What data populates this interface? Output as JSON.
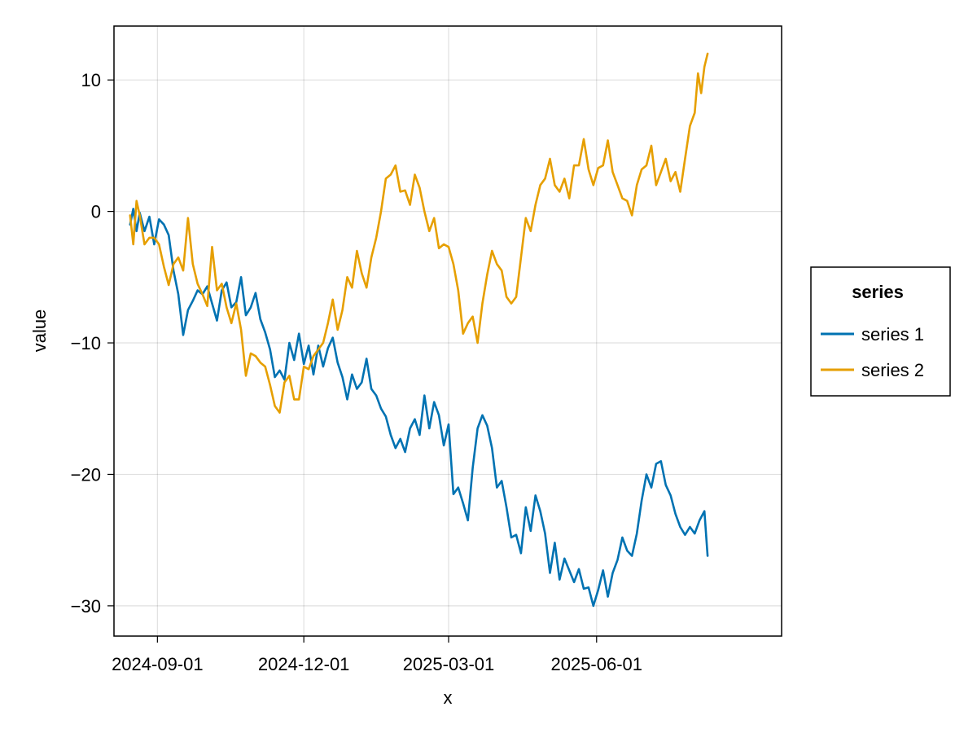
{
  "chart_data": {
    "type": "line",
    "xlabel": "x",
    "ylabel": "value",
    "xlim": [
      "2024-08-05",
      "2025-09-24"
    ],
    "ylim": [
      -32.3,
      14.1
    ],
    "x_ticks": [
      "2024-09-01",
      "2024-12-01",
      "2025-03-01",
      "2025-06-01"
    ],
    "y_ticks": [
      10,
      0,
      -10,
      -20,
      -30
    ],
    "y_tick_labels": [
      "10",
      "0",
      "−10",
      "−20",
      "−30"
    ],
    "grid": true,
    "legend": {
      "title": "series",
      "placement": "right"
    },
    "series": [
      {
        "name": "series 1",
        "color": "#0072b2",
        "points": [
          [
            "2024-08-15",
            -1.0
          ],
          [
            "2024-08-17",
            0.2
          ],
          [
            "2024-08-19",
            -1.5
          ],
          [
            "2024-08-21",
            -0.1
          ],
          [
            "2024-08-24",
            -1.5
          ],
          [
            "2024-08-27",
            -0.4
          ],
          [
            "2024-08-30",
            -2.5
          ],
          [
            "2024-09-02",
            -0.6
          ],
          [
            "2024-09-05",
            -1.0
          ],
          [
            "2024-09-08",
            -1.8
          ],
          [
            "2024-09-11",
            -4.5
          ],
          [
            "2024-09-14",
            -6.3
          ],
          [
            "2024-09-17",
            -9.4
          ],
          [
            "2024-09-20",
            -7.5
          ],
          [
            "2024-09-23",
            -6.8
          ],
          [
            "2024-09-26",
            -6.0
          ],
          [
            "2024-09-29",
            -6.3
          ],
          [
            "2024-10-02",
            -5.7
          ],
          [
            "2024-10-05",
            -7.0
          ],
          [
            "2024-10-08",
            -8.3
          ],
          [
            "2024-10-11",
            -6.0
          ],
          [
            "2024-10-14",
            -5.4
          ],
          [
            "2024-10-17",
            -7.3
          ],
          [
            "2024-10-20",
            -6.9
          ],
          [
            "2024-10-23",
            -5.0
          ],
          [
            "2024-10-26",
            -7.9
          ],
          [
            "2024-10-29",
            -7.3
          ],
          [
            "2024-11-01",
            -6.2
          ],
          [
            "2024-11-04",
            -8.2
          ],
          [
            "2024-11-07",
            -9.2
          ],
          [
            "2024-11-10",
            -10.5
          ],
          [
            "2024-11-13",
            -12.6
          ],
          [
            "2024-11-16",
            -12.1
          ],
          [
            "2024-11-19",
            -12.8
          ],
          [
            "2024-11-22",
            -10.0
          ],
          [
            "2024-11-25",
            -11.3
          ],
          [
            "2024-11-28",
            -9.3
          ],
          [
            "2024-12-01",
            -11.6
          ],
          [
            "2024-12-04",
            -10.2
          ],
          [
            "2024-12-07",
            -12.4
          ],
          [
            "2024-12-10",
            -10.2
          ],
          [
            "2024-12-13",
            -11.8
          ],
          [
            "2024-12-16",
            -10.4
          ],
          [
            "2024-12-19",
            -9.6
          ],
          [
            "2024-12-22",
            -11.5
          ],
          [
            "2024-12-25",
            -12.6
          ],
          [
            "2024-12-28",
            -14.3
          ],
          [
            "2024-12-31",
            -12.4
          ],
          [
            "2025-01-03",
            -13.5
          ],
          [
            "2025-01-06",
            -13.0
          ],
          [
            "2025-01-09",
            -11.2
          ],
          [
            "2025-01-12",
            -13.5
          ],
          [
            "2025-01-15",
            -14.0
          ],
          [
            "2025-01-18",
            -15.0
          ],
          [
            "2025-01-21",
            -15.6
          ],
          [
            "2025-01-24",
            -17.0
          ],
          [
            "2025-01-27",
            -18.0
          ],
          [
            "2025-01-30",
            -17.3
          ],
          [
            "2025-02-02",
            -18.3
          ],
          [
            "2025-02-05",
            -16.5
          ],
          [
            "2025-02-08",
            -15.8
          ],
          [
            "2025-02-11",
            -17.0
          ],
          [
            "2025-02-14",
            -14.0
          ],
          [
            "2025-02-17",
            -16.5
          ],
          [
            "2025-02-20",
            -14.5
          ],
          [
            "2025-02-23",
            -15.5
          ],
          [
            "2025-02-26",
            -17.8
          ],
          [
            "2025-03-01",
            -16.2
          ],
          [
            "2025-03-04",
            -21.5
          ],
          [
            "2025-03-07",
            -21.0
          ],
          [
            "2025-03-10",
            -22.2
          ],
          [
            "2025-03-13",
            -23.5
          ],
          [
            "2025-03-16",
            -19.5
          ],
          [
            "2025-03-19",
            -16.5
          ],
          [
            "2025-03-22",
            -15.5
          ],
          [
            "2025-03-25",
            -16.3
          ],
          [
            "2025-03-28",
            -18.0
          ],
          [
            "2025-03-31",
            -21.0
          ],
          [
            "2025-04-03",
            -20.5
          ],
          [
            "2025-04-06",
            -22.5
          ],
          [
            "2025-04-09",
            -24.8
          ],
          [
            "2025-04-12",
            -24.6
          ],
          [
            "2025-04-15",
            -26.0
          ],
          [
            "2025-04-18",
            -22.5
          ],
          [
            "2025-04-21",
            -24.3
          ],
          [
            "2025-04-24",
            -21.6
          ],
          [
            "2025-04-27",
            -22.8
          ],
          [
            "2025-04-30",
            -24.5
          ],
          [
            "2025-05-03",
            -27.5
          ],
          [
            "2025-05-06",
            -25.2
          ],
          [
            "2025-05-09",
            -28.0
          ],
          [
            "2025-05-12",
            -26.4
          ],
          [
            "2025-05-15",
            -27.3
          ],
          [
            "2025-05-18",
            -28.2
          ],
          [
            "2025-05-21",
            -27.2
          ],
          [
            "2025-05-24",
            -28.7
          ],
          [
            "2025-05-27",
            -28.6
          ],
          [
            "2025-05-30",
            -30.0
          ],
          [
            "2025-06-02",
            -28.8
          ],
          [
            "2025-06-05",
            -27.3
          ],
          [
            "2025-06-08",
            -29.3
          ],
          [
            "2025-06-11",
            -27.5
          ],
          [
            "2025-06-14",
            -26.5
          ],
          [
            "2025-06-17",
            -24.8
          ],
          [
            "2025-06-20",
            -25.8
          ],
          [
            "2025-06-23",
            -26.2
          ],
          [
            "2025-06-26",
            -24.5
          ],
          [
            "2025-06-29",
            -22.0
          ],
          [
            "2025-07-02",
            -20.0
          ],
          [
            "2025-07-05",
            -21.0
          ],
          [
            "2025-07-08",
            -19.2
          ],
          [
            "2025-07-11",
            -19.0
          ],
          [
            "2025-07-14",
            -20.8
          ],
          [
            "2025-07-17",
            -21.6
          ],
          [
            "2025-07-20",
            -23.0
          ],
          [
            "2025-07-23",
            -24.0
          ],
          [
            "2025-07-26",
            -24.6
          ],
          [
            "2025-07-29",
            -24.0
          ],
          [
            "2025-08-01",
            -24.5
          ],
          [
            "2025-08-04",
            -23.5
          ],
          [
            "2025-08-07",
            -22.8
          ],
          [
            "2025-08-09",
            -26.2
          ]
        ]
      },
      {
        "name": "series 2",
        "color": "#e69f00",
        "points": [
          [
            "2024-08-15",
            -0.3
          ],
          [
            "2024-08-17",
            -2.5
          ],
          [
            "2024-08-19",
            0.8
          ],
          [
            "2024-08-21",
            -0.3
          ],
          [
            "2024-08-24",
            -2.5
          ],
          [
            "2024-08-27",
            -2.0
          ],
          [
            "2024-08-30",
            -2.0
          ],
          [
            "2024-09-02",
            -2.5
          ],
          [
            "2024-09-05",
            -4.2
          ],
          [
            "2024-09-08",
            -5.6
          ],
          [
            "2024-09-11",
            -4.0
          ],
          [
            "2024-09-14",
            -3.5
          ],
          [
            "2024-09-17",
            -4.5
          ],
          [
            "2024-09-20",
            -0.5
          ],
          [
            "2024-09-23",
            -4.0
          ],
          [
            "2024-09-26",
            -5.5
          ],
          [
            "2024-09-29",
            -6.3
          ],
          [
            "2024-10-02",
            -7.2
          ],
          [
            "2024-10-05",
            -2.7
          ],
          [
            "2024-10-08",
            -6.0
          ],
          [
            "2024-10-11",
            -5.5
          ],
          [
            "2024-10-14",
            -7.3
          ],
          [
            "2024-10-17",
            -8.5
          ],
          [
            "2024-10-20",
            -7.0
          ],
          [
            "2024-10-23",
            -9.0
          ],
          [
            "2024-10-26",
            -12.5
          ],
          [
            "2024-10-29",
            -10.8
          ],
          [
            "2024-11-01",
            -11.0
          ],
          [
            "2024-11-04",
            -11.5
          ],
          [
            "2024-11-07",
            -11.8
          ],
          [
            "2024-11-10",
            -13.2
          ],
          [
            "2024-11-13",
            -14.8
          ],
          [
            "2024-11-16",
            -15.3
          ],
          [
            "2024-11-19",
            -13.0
          ],
          [
            "2024-11-22",
            -12.5
          ],
          [
            "2024-11-25",
            -14.3
          ],
          [
            "2024-11-28",
            -14.3
          ],
          [
            "2024-12-01",
            -11.8
          ],
          [
            "2024-12-04",
            -12.0
          ],
          [
            "2024-12-07",
            -11.0
          ],
          [
            "2024-12-10",
            -10.5
          ],
          [
            "2024-12-13",
            -10.0
          ],
          [
            "2024-12-16",
            -8.5
          ],
          [
            "2024-12-19",
            -6.7
          ],
          [
            "2024-12-22",
            -9.0
          ],
          [
            "2024-12-25",
            -7.5
          ],
          [
            "2024-12-28",
            -5.0
          ],
          [
            "2024-12-31",
            -5.8
          ],
          [
            "2025-01-03",
            -3.0
          ],
          [
            "2025-01-06",
            -4.7
          ],
          [
            "2025-01-09",
            -5.8
          ],
          [
            "2025-01-12",
            -3.5
          ],
          [
            "2025-01-15",
            -2.0
          ],
          [
            "2025-01-18",
            0.0
          ],
          [
            "2025-01-21",
            2.5
          ],
          [
            "2025-01-24",
            2.8
          ],
          [
            "2025-01-27",
            3.5
          ],
          [
            "2025-01-30",
            1.5
          ],
          [
            "2025-02-02",
            1.6
          ],
          [
            "2025-02-05",
            0.5
          ],
          [
            "2025-02-08",
            2.8
          ],
          [
            "2025-02-11",
            1.8
          ],
          [
            "2025-02-14",
            0.0
          ],
          [
            "2025-02-17",
            -1.5
          ],
          [
            "2025-02-20",
            -0.5
          ],
          [
            "2025-02-23",
            -2.8
          ],
          [
            "2025-02-26",
            -2.5
          ],
          [
            "2025-03-01",
            -2.7
          ],
          [
            "2025-03-04",
            -4.0
          ],
          [
            "2025-03-07",
            -6.0
          ],
          [
            "2025-03-10",
            -9.3
          ],
          [
            "2025-03-13",
            -8.5
          ],
          [
            "2025-03-16",
            -8.0
          ],
          [
            "2025-03-19",
            -10.0
          ],
          [
            "2025-03-22",
            -7.0
          ],
          [
            "2025-03-25",
            -4.8
          ],
          [
            "2025-03-28",
            -3.0
          ],
          [
            "2025-03-31",
            -4.0
          ],
          [
            "2025-04-03",
            -4.5
          ],
          [
            "2025-04-06",
            -6.5
          ],
          [
            "2025-04-09",
            -7.0
          ],
          [
            "2025-04-12",
            -6.5
          ],
          [
            "2025-04-15",
            -3.5
          ],
          [
            "2025-04-18",
            -0.5
          ],
          [
            "2025-04-21",
            -1.5
          ],
          [
            "2025-04-24",
            0.5
          ],
          [
            "2025-04-27",
            2.0
          ],
          [
            "2025-04-30",
            2.5
          ],
          [
            "2025-05-03",
            4.0
          ],
          [
            "2025-05-06",
            2.0
          ],
          [
            "2025-05-09",
            1.5
          ],
          [
            "2025-05-12",
            2.5
          ],
          [
            "2025-05-15",
            1.0
          ],
          [
            "2025-05-18",
            3.5
          ],
          [
            "2025-05-21",
            3.5
          ],
          [
            "2025-05-24",
            5.5
          ],
          [
            "2025-05-27",
            3.2
          ],
          [
            "2025-05-30",
            2.0
          ],
          [
            "2025-06-02",
            3.3
          ],
          [
            "2025-06-05",
            3.5
          ],
          [
            "2025-06-08",
            5.4
          ],
          [
            "2025-06-11",
            3.0
          ],
          [
            "2025-06-14",
            2.0
          ],
          [
            "2025-06-17",
            1.0
          ],
          [
            "2025-06-20",
            0.8
          ],
          [
            "2025-06-23",
            -0.3
          ],
          [
            "2025-06-26",
            2.0
          ],
          [
            "2025-06-29",
            3.2
          ],
          [
            "2025-07-02",
            3.5
          ],
          [
            "2025-07-05",
            5.0
          ],
          [
            "2025-07-08",
            2.0
          ],
          [
            "2025-07-11",
            3.0
          ],
          [
            "2025-07-14",
            4.0
          ],
          [
            "2025-07-17",
            2.3
          ],
          [
            "2025-07-20",
            3.0
          ],
          [
            "2025-07-23",
            1.5
          ],
          [
            "2025-07-26",
            4.0
          ],
          [
            "2025-07-29",
            6.5
          ],
          [
            "2025-08-01",
            7.5
          ],
          [
            "2025-08-03",
            10.5
          ],
          [
            "2025-08-05",
            9.0
          ],
          [
            "2025-08-07",
            11.0
          ],
          [
            "2025-08-09",
            12.0
          ]
        ]
      }
    ]
  }
}
